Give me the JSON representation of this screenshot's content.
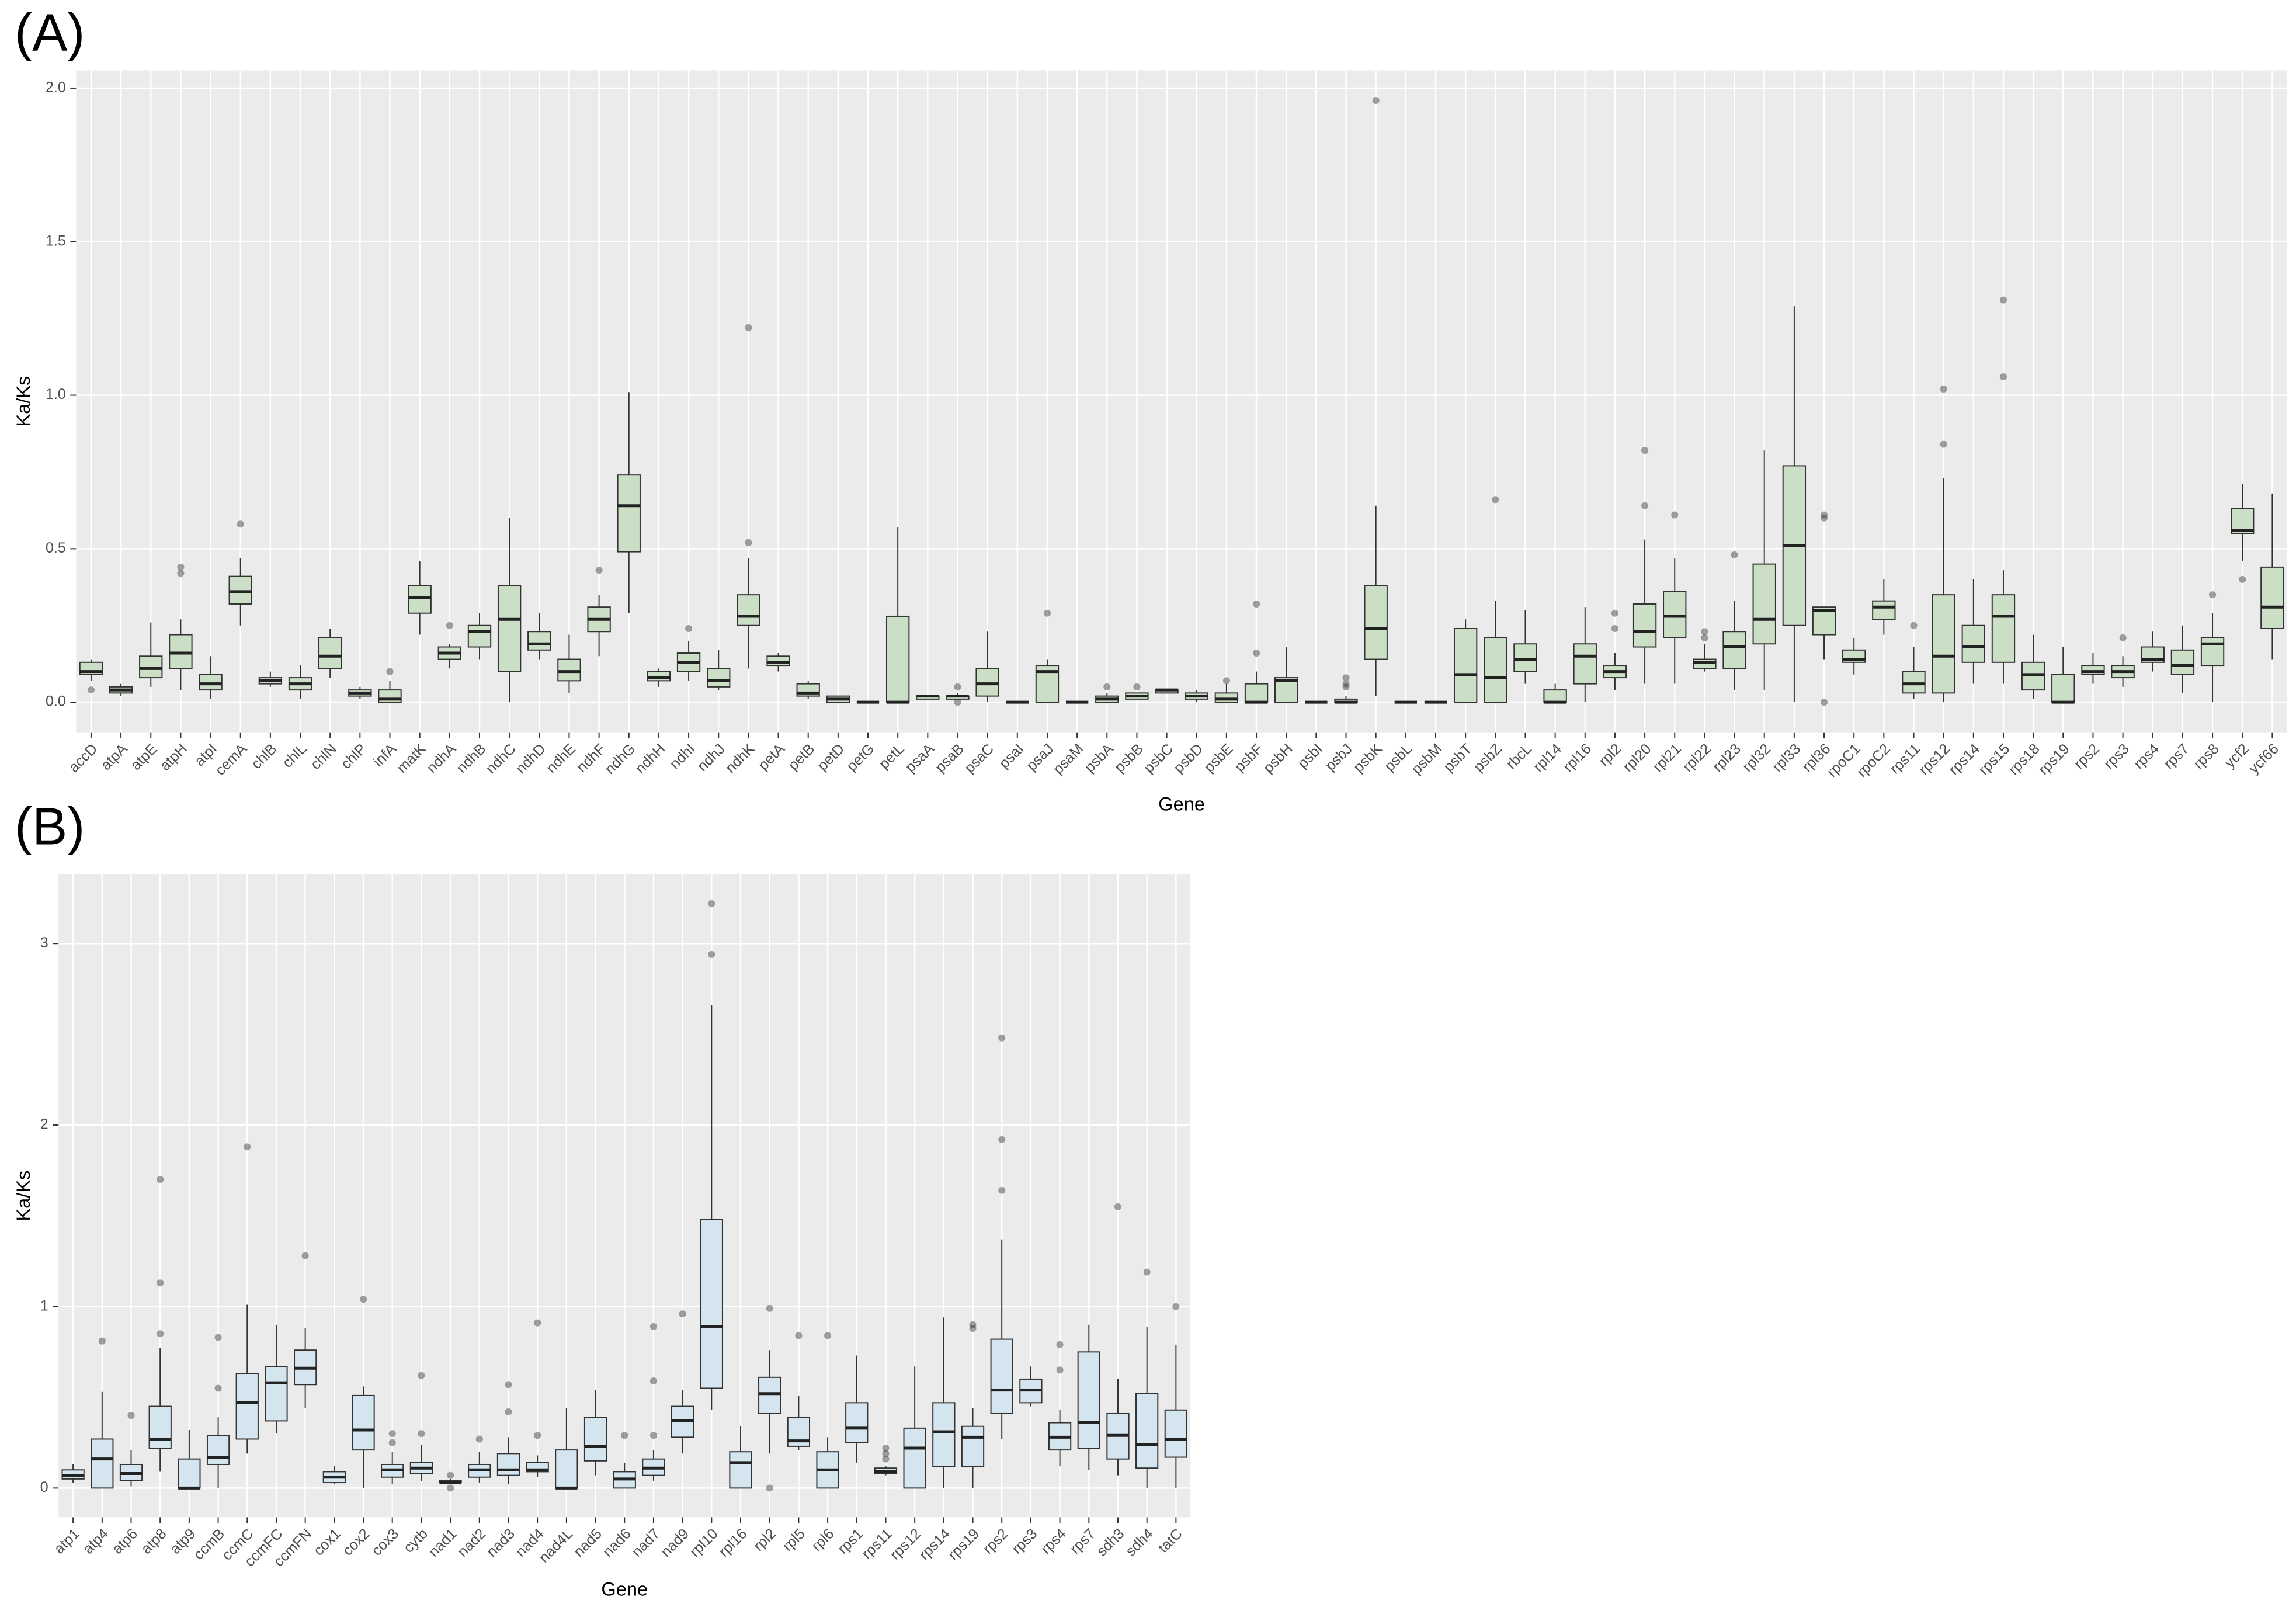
{
  "chart_data": [
    {
      "type": "box",
      "label": "(A)",
      "ylabel": "Ka/Ks",
      "xlabel": "Gene",
      "fill": "#cbdfc7",
      "grid": true,
      "ylim": [
        -0.098,
        2.058
      ],
      "yticks": [
        {
          "value": 0,
          "label": "0.0"
        },
        {
          "value": 0.5,
          "label": "0.5"
        },
        {
          "value": 1,
          "label": "1.0"
        },
        {
          "value": 1.5,
          "label": "1.5"
        },
        {
          "value": 2,
          "label": "2.0"
        }
      ],
      "categories": [
        "accD",
        "atpA",
        "atpE",
        "atpH",
        "atpI",
        "cemA",
        "chlB",
        "chlL",
        "chlN",
        "chlP",
        "infA",
        "matK",
        "ndhA",
        "ndhB",
        "ndhC",
        "ndhD",
        "ndhE",
        "ndhF",
        "ndhG",
        "ndhH",
        "ndhI",
        "ndhJ",
        "ndhK",
        "petA",
        "petB",
        "petD",
        "petG",
        "petL",
        "psaA",
        "psaB",
        "psaC",
        "psaI",
        "psaJ",
        "psaM",
        "psbA",
        "psbB",
        "psbC",
        "psbD",
        "psbE",
        "psbF",
        "psbH",
        "psbI",
        "psbJ",
        "psbK",
        "psbL",
        "psbM",
        "psbT",
        "psbZ",
        "rbcL",
        "rpl14",
        "rpl16",
        "rpl2",
        "rpl20",
        "rpl21",
        "rpl22",
        "rpl23",
        "rpl32",
        "rpl33",
        "rpl36",
        "rpoC1",
        "rpoC2",
        "rps11",
        "rps12",
        "rps14",
        "rps15",
        "rps18",
        "rps19",
        "rps2",
        "rps3",
        "rps4",
        "rps7",
        "rps8",
        "ycf2",
        "ycf66"
      ],
      "min": [
        0.07,
        0.02,
        0.05,
        0.04,
        0.01,
        0.25,
        0.05,
        0.01,
        0.08,
        0.01,
        0,
        0.22,
        0.11,
        0.14,
        0,
        0.14,
        0.03,
        0.15,
        0.29,
        0.05,
        0.07,
        0.04,
        0.11,
        0.1,
        0.01,
        0,
        0,
        0,
        0.01,
        0.01,
        0,
        0,
        0,
        0,
        0,
        0.01,
        0.03,
        0,
        0,
        0,
        0,
        0,
        0,
        0.02,
        0,
        0,
        0,
        0,
        0.06,
        0,
        0,
        0.04,
        0.06,
        0.06,
        0.1,
        0.04,
        0.04,
        0,
        0.14,
        0.09,
        0.22,
        0.01,
        0,
        0.06,
        0.06,
        0.01,
        0,
        0.06,
        0.05,
        0.1,
        0.03,
        0,
        0.46,
        0.14
      ],
      "q1": [
        0.09,
        0.03,
        0.08,
        0.11,
        0.04,
        0.32,
        0.06,
        0.04,
        0.11,
        0.02,
        0,
        0.29,
        0.14,
        0.18,
        0.1,
        0.17,
        0.07,
        0.23,
        0.49,
        0.07,
        0.1,
        0.05,
        0.25,
        0.12,
        0.02,
        0,
        0,
        0,
        0.01,
        0.01,
        0.02,
        0,
        0,
        0,
        0,
        0.01,
        0.03,
        0.01,
        0,
        0,
        0,
        0,
        0,
        0.14,
        0,
        0,
        0,
        0,
        0.1,
        0,
        0.06,
        0.08,
        0.18,
        0.21,
        0.11,
        0.11,
        0.19,
        0.25,
        0.22,
        0.13,
        0.27,
        0.03,
        0.03,
        0.13,
        0.13,
        0.04,
        0,
        0.09,
        0.08,
        0.13,
        0.09,
        0.12,
        0.55,
        0.24
      ],
      "median": [
        0.1,
        0.04,
        0.11,
        0.16,
        0.06,
        0.36,
        0.07,
        0.06,
        0.15,
        0.03,
        0.01,
        0.34,
        0.16,
        0.23,
        0.27,
        0.19,
        0.1,
        0.27,
        0.64,
        0.08,
        0.13,
        0.07,
        0.28,
        0.13,
        0.03,
        0.01,
        0,
        0,
        0.02,
        0.02,
        0.06,
        0,
        0.1,
        0,
        0.01,
        0.02,
        0.04,
        0.02,
        0.01,
        0,
        0.07,
        0,
        0,
        0.24,
        0,
        0,
        0.09,
        0.08,
        0.14,
        0,
        0.15,
        0.1,
        0.23,
        0.28,
        0.13,
        0.18,
        0.27,
        0.51,
        0.3,
        0.14,
        0.31,
        0.06,
        0.15,
        0.18,
        0.28,
        0.09,
        0,
        0.1,
        0.1,
        0.14,
        0.12,
        0.19,
        0.56,
        0.31
      ],
      "q3": [
        0.13,
        0.05,
        0.15,
        0.22,
        0.09,
        0.41,
        0.08,
        0.08,
        0.21,
        0.04,
        0.04,
        0.38,
        0.18,
        0.25,
        0.38,
        0.23,
        0.14,
        0.31,
        0.74,
        0.1,
        0.16,
        0.11,
        0.35,
        0.15,
        0.06,
        0.02,
        0,
        0.28,
        0.02,
        0.02,
        0.11,
        0,
        0.12,
        0,
        0.02,
        0.03,
        0.04,
        0.03,
        0.03,
        0.06,
        0.08,
        0,
        0.01,
        0.38,
        0,
        0,
        0.24,
        0.21,
        0.19,
        0.04,
        0.19,
        0.12,
        0.32,
        0.36,
        0.14,
        0.23,
        0.45,
        0.77,
        0.31,
        0.17,
        0.33,
        0.1,
        0.35,
        0.25,
        0.35,
        0.13,
        0.09,
        0.12,
        0.12,
        0.18,
        0.17,
        0.21,
        0.63,
        0.44
      ],
      "max": [
        0.14,
        0.06,
        0.26,
        0.27,
        0.15,
        0.47,
        0.1,
        0.12,
        0.24,
        0.05,
        0.07,
        0.46,
        0.19,
        0.29,
        0.6,
        0.29,
        0.22,
        0.35,
        1.01,
        0.11,
        0.2,
        0.17,
        0.47,
        0.16,
        0.07,
        0.02,
        0,
        0.57,
        0.02,
        0.03,
        0.23,
        0,
        0.14,
        0,
        0.03,
        0.03,
        0.04,
        0.04,
        0.06,
        0.1,
        0.18,
        0,
        0.02,
        0.64,
        0,
        0,
        0.27,
        0.33,
        0.3,
        0.06,
        0.31,
        0.16,
        0.53,
        0.47,
        0.19,
        0.33,
        0.82,
        1.29,
        0.31,
        0.21,
        0.4,
        0.18,
        0.73,
        0.4,
        0.43,
        0.22,
        0.18,
        0.16,
        0.15,
        0.23,
        0.25,
        0.29,
        0.71,
        0.68
      ],
      "outliers": [
        [
          0.04
        ],
        [],
        [],
        [
          0.42,
          0.44
        ],
        [],
        [
          0.58
        ],
        [],
        [],
        [],
        [],
        [
          0.1
        ],
        [],
        [
          0.25
        ],
        [],
        [],
        [],
        [],
        [
          0.43
        ],
        [],
        [],
        [
          0.24
        ],
        [],
        [
          0.52,
          1.22
        ],
        [],
        [],
        [],
        [],
        [],
        [],
        [
          0,
          0.05
        ],
        [],
        [],
        [
          0.29
        ],
        [],
        [
          0.05
        ],
        [
          0.05
        ],
        [],
        [],
        [
          0.07
        ],
        [
          0.16,
          0.32
        ],
        [],
        [],
        [
          0.05,
          0.06,
          0.08
        ],
        [
          1.96
        ],
        [],
        [],
        [],
        [
          0.66
        ],
        [],
        [],
        [],
        [
          0.24,
          0.29
        ],
        [
          0.64,
          0.82
        ],
        [
          0.61
        ],
        [
          0.21,
          0.23
        ],
        [
          0.48
        ],
        [],
        [],
        [
          0,
          0.6,
          0.61
        ],
        [],
        [],
        [
          0.25
        ],
        [
          0.84,
          1.02
        ],
        [],
        [
          1.06,
          1.31
        ],
        [],
        [],
        [],
        [
          0.21
        ],
        [],
        [],
        [
          0.35
        ],
        [
          0.4
        ],
        []
      ]
    },
    {
      "type": "box",
      "label": "(B)",
      "ylabel": "Ka/Ks",
      "xlabel": "Gene",
      "fill": "#d4e5ef",
      "grid": true,
      "ylim": [
        -0.161,
        3.381
      ],
      "yticks": [
        0,
        1,
        2,
        3
      ],
      "categories": [
        "atp1",
        "atp4",
        "atp6",
        "atp8",
        "atp9",
        "ccmB",
        "ccmC",
        "ccmFC",
        "ccmFN",
        "cox1",
        "cox2",
        "cox3",
        "cytb",
        "nad1",
        "nad2",
        "nad3",
        "nad4",
        "nad4L",
        "nad5",
        "nad6",
        "nad7",
        "nad9",
        "rpl10",
        "rpl16",
        "rpl2",
        "rpl5",
        "rpl6",
        "rps1",
        "rps11",
        "rps12",
        "rps14",
        "rps19",
        "rps2",
        "rps3",
        "rps4",
        "rps7",
        "sdh3",
        "sdh4",
        "tatC"
      ],
      "min": [
        0.03,
        0,
        0.01,
        0.09,
        0,
        0,
        0.19,
        0.3,
        0.44,
        0.02,
        0,
        0.02,
        0.04,
        0.02,
        0.03,
        0.02,
        0.06,
        0,
        0.07,
        0,
        0.04,
        0.19,
        0.43,
        0,
        0.19,
        0.21,
        0,
        0.14,
        0.07,
        0,
        0,
        0,
        0.27,
        0.45,
        0.12,
        0.1,
        0.07,
        0,
        0
      ],
      "q1": [
        0.05,
        0,
        0.04,
        0.22,
        0,
        0.13,
        0.27,
        0.37,
        0.57,
        0.03,
        0.21,
        0.06,
        0.08,
        0.03,
        0.06,
        0.07,
        0.09,
        0,
        0.15,
        0,
        0.07,
        0.28,
        0.55,
        0,
        0.41,
        0.23,
        0,
        0.25,
        0.08,
        0,
        0.12,
        0.12,
        0.41,
        0.47,
        0.21,
        0.22,
        0.16,
        0.11,
        0.17
      ],
      "median": [
        0.07,
        0.16,
        0.08,
        0.27,
        0,
        0.17,
        0.47,
        0.58,
        0.66,
        0.06,
        0.32,
        0.1,
        0.11,
        0.03,
        0.1,
        0.1,
        0.1,
        0,
        0.23,
        0.05,
        0.11,
        0.37,
        0.89,
        0.14,
        0.52,
        0.26,
        0.1,
        0.33,
        0.09,
        0.22,
        0.31,
        0.28,
        0.54,
        0.54,
        0.28,
        0.36,
        0.29,
        0.24,
        0.27
      ],
      "q3": [
        0.1,
        0.27,
        0.13,
        0.45,
        0.16,
        0.29,
        0.63,
        0.67,
        0.76,
        0.09,
        0.51,
        0.13,
        0.14,
        0.04,
        0.13,
        0.19,
        0.14,
        0.21,
        0.39,
        0.09,
        0.16,
        0.45,
        1.48,
        0.2,
        0.61,
        0.39,
        0.2,
        0.47,
        0.11,
        0.33,
        0.47,
        0.34,
        0.82,
        0.6,
        0.36,
        0.75,
        0.41,
        0.52,
        0.43
      ],
      "max": [
        0.13,
        0.53,
        0.21,
        0.77,
        0.32,
        0.39,
        1.01,
        0.9,
        0.88,
        0.12,
        0.56,
        0.2,
        0.24,
        0.05,
        0.2,
        0.28,
        0.18,
        0.44,
        0.54,
        0.14,
        0.21,
        0.54,
        2.66,
        0.34,
        0.76,
        0.51,
        0.28,
        0.73,
        0.12,
        0.67,
        0.94,
        0.44,
        1.37,
        0.67,
        0.43,
        0.9,
        0.6,
        0.89,
        0.79
      ],
      "outliers": [
        [],
        [
          0.81
        ],
        [
          0.4
        ],
        [
          0.85,
          1.13,
          1.7
        ],
        [],
        [
          0.55,
          0.83
        ],
        [
          1.88
        ],
        [],
        [
          1.28
        ],
        [],
        [
          1.04
        ],
        [
          0.25,
          0.3
        ],
        [
          0.3,
          0.62
        ],
        [
          0,
          0.07
        ],
        [
          0.27
        ],
        [
          0.42,
          0.57
        ],
        [
          0.29,
          0.91
        ],
        [],
        [],
        [
          0.29
        ],
        [
          0.29,
          0.59,
          0.89
        ],
        [
          0.96
        ],
        [
          2.94,
          3.22
        ],
        [],
        [
          0,
          0.99
        ],
        [
          0.84
        ],
        [
          0.84
        ],
        [],
        [
          0.16,
          0.19,
          0.22
        ],
        [],
        [],
        [
          0.88,
          0.9
        ],
        [
          1.64,
          1.92,
          2.48
        ],
        [],
        [
          0.65,
          0.79
        ],
        [],
        [
          1.55
        ],
        [
          1.19
        ],
        [
          1.0
        ]
      ]
    }
  ]
}
